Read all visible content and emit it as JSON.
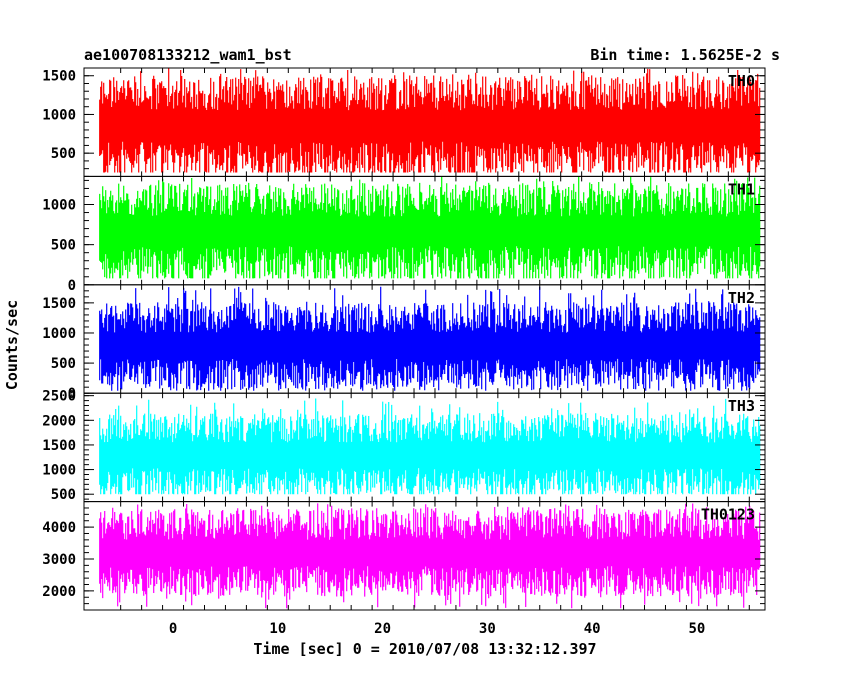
{
  "header": {
    "title": "ae100708133212_wam1_bst",
    "bin_time": "Bin time: 1.5625E-2 s"
  },
  "chart_data": {
    "type": "line",
    "title": "ae100708133212_wam1_bst",
    "xlabel": "Time [sec] 0 = 2010/07/08 13:32:12.397",
    "ylabel": "Counts/sec",
    "xlim": [
      -8.5,
      56.5
    ],
    "x_ticks": [
      0,
      10,
      20,
      30,
      40,
      50
    ],
    "x_range": [
      -7,
      56
    ],
    "grid": false,
    "panels": [
      {
        "name": "TH0",
        "color": "#ff0000",
        "ylim": [
          200,
          1600
        ],
        "yticks": [
          500,
          1000,
          1500
        ],
        "mean": 830,
        "low": 380,
        "high": 1280,
        "min": 250,
        "max": 1600
      },
      {
        "name": "TH1",
        "color": "#00ff00",
        "ylim": [
          0,
          1350
        ],
        "yticks": [
          0,
          500,
          1000
        ],
        "mean": 640,
        "low": 240,
        "high": 1060,
        "min": 80,
        "max": 1350
      },
      {
        "name": "TH2",
        "color": "#0000ff",
        "ylim": [
          0,
          1800
        ],
        "yticks": [
          0,
          500,
          1000,
          1500
        ],
        "mean": 750,
        "low": 300,
        "high": 1260,
        "min": 40,
        "max": 1780
      },
      {
        "name": "TH3",
        "color": "#00ffff",
        "ylim": [
          350,
          2550
        ],
        "yticks": [
          500,
          1000,
          1500,
          2000,
          2500
        ],
        "mean": 1250,
        "low": 700,
        "high": 1850,
        "min": 500,
        "max": 2450
      },
      {
        "name": "TH0123",
        "color": "#ff00ff",
        "ylim": [
          1400,
          4800
        ],
        "yticks": [
          2000,
          3000,
          4000
        ],
        "mean": 3100,
        "low": 2300,
        "high": 4100,
        "min": 1450,
        "max": 4750
      }
    ]
  }
}
